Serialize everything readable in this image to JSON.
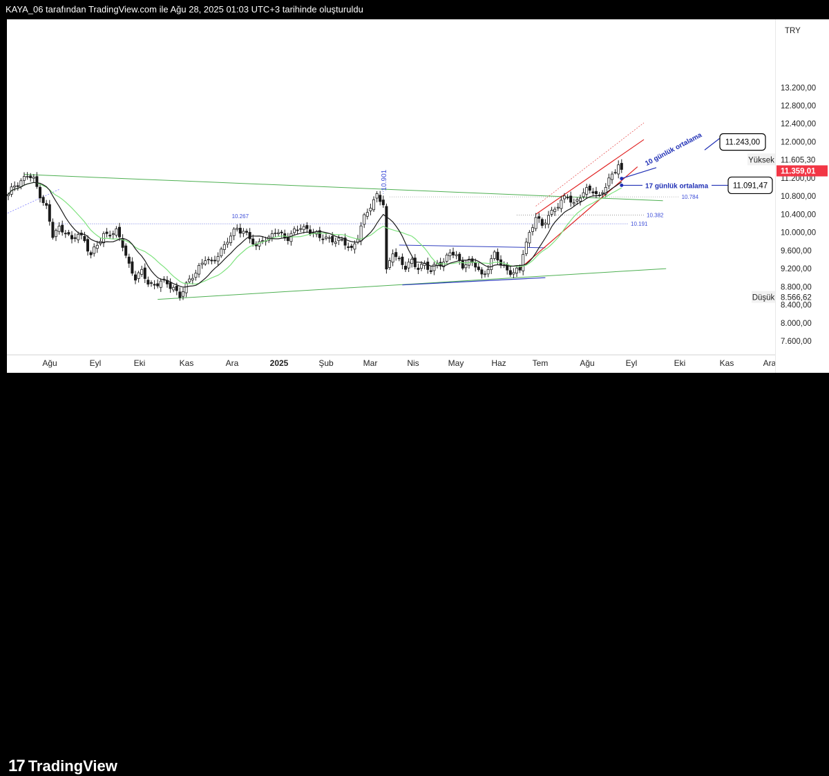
{
  "header": {
    "title": "KAYA_06 tarafından TradingView.com ile Ağu 28, 2025 01:03 UTC+3 tarihinde oluşturuldu"
  },
  "footer": {
    "logo_mark": "17",
    "logo_text": "TradingView"
  },
  "colors": {
    "candle": "#1a1a1a",
    "ma10": "#1a1a1a",
    "ma17": "#7ee27e",
    "trend_green": "#4caf50",
    "trend_blue": "#2e3dbf",
    "channel_red": "#e02020",
    "label_blue": "#1f2fb5",
    "price_red": "#f23645"
  },
  "chart_data": {
    "type": "candlestick",
    "currency": "TRY",
    "y_ticks": [
      "7.600,00",
      "8.000,00",
      "8.400,00",
      "8.800,00",
      "9.200,00",
      "9.600,00",
      "10.000,00",
      "10.400,00",
      "10.800,00",
      "11.200,00",
      "12.000,00",
      "12.400,00",
      "12.800,00",
      "13.200,00"
    ],
    "x_ticks": [
      "Ağu",
      "Eyl",
      "Eki",
      "Kas",
      "Ara",
      "2025",
      "Şub",
      "Mar",
      "Nis",
      "May",
      "Haz",
      "Tem",
      "Ağu",
      "Eyl",
      "Eki",
      "Kas",
      "Ara"
    ],
    "ylim": [
      7300,
      13500
    ],
    "high_label": "Yüksek",
    "high_value": "11.605,30",
    "low_label": "Düşük",
    "low_value": "8.566,62",
    "last_price": "11.359,01",
    "price_line_labels": [
      "10.784",
      "10.382",
      "10.191"
    ],
    "peak_labels": [
      "10.267",
      "10.901"
    ],
    "annotations": {
      "ma10_label": "10 günlük ortalama",
      "ma10_value": "11.243,00",
      "ma17_label": "17 günlük ortalama",
      "ma17_value": "11.091,47"
    },
    "price_path": [
      [
        0,
        10800
      ],
      [
        2,
        11050
      ],
      [
        4,
        11150
      ],
      [
        6,
        11250
      ],
      [
        8,
        11150
      ],
      [
        10,
        10850
      ],
      [
        12,
        10550
      ],
      [
        14,
        9900
      ],
      [
        16,
        10100
      ],
      [
        18,
        10050
      ],
      [
        20,
        9800
      ],
      [
        22,
        9950
      ],
      [
        24,
        9850
      ],
      [
        26,
        9500
      ],
      [
        28,
        9700
      ],
      [
        30,
        9950
      ],
      [
        32,
        10000
      ],
      [
        34,
        10000
      ],
      [
        36,
        9700
      ],
      [
        38,
        9300
      ],
      [
        40,
        9000
      ],
      [
        42,
        9100
      ],
      [
        44,
        8900
      ],
      [
        46,
        8850
      ],
      [
        48,
        8900
      ],
      [
        50,
        8850
      ],
      [
        52,
        8800
      ],
      [
        54,
        8600
      ],
      [
        56,
        8800
      ],
      [
        58,
        9050
      ],
      [
        60,
        9250
      ],
      [
        62,
        9400
      ],
      [
        64,
        9300
      ],
      [
        66,
        9550
      ],
      [
        68,
        9700
      ],
      [
        70,
        9900
      ],
      [
        72,
        10100
      ],
      [
        74,
        10050
      ],
      [
        76,
        9850
      ],
      [
        78,
        9650
      ],
      [
        80,
        9900
      ],
      [
        82,
        9850
      ],
      [
        84,
        10000
      ],
      [
        86,
        9950
      ],
      [
        88,
        9900
      ],
      [
        90,
        10000
      ],
      [
        92,
        10100
      ],
      [
        94,
        10100
      ],
      [
        96,
        10000
      ],
      [
        98,
        9850
      ],
      [
        100,
        9900
      ],
      [
        102,
        9850
      ],
      [
        104,
        9800
      ],
      [
        106,
        9750
      ],
      [
        108,
        9650
      ],
      [
        110,
        9900
      ],
      [
        112,
        10300
      ],
      [
        114,
        10600
      ],
      [
        116,
        10850
      ],
      [
        118,
        10600
      ],
      [
        119,
        9100
      ],
      [
        121,
        9600
      ],
      [
        123,
        9400
      ],
      [
        125,
        9200
      ],
      [
        127,
        9350
      ],
      [
        129,
        9250
      ],
      [
        131,
        9300
      ],
      [
        133,
        9100
      ],
      [
        135,
        9350
      ],
      [
        137,
        9350
      ],
      [
        139,
        9550
      ],
      [
        141,
        9450
      ],
      [
        143,
        9300
      ],
      [
        145,
        9350
      ],
      [
        147,
        9250
      ],
      [
        149,
        9050
      ],
      [
        151,
        9250
      ],
      [
        153,
        9500
      ],
      [
        155,
        9300
      ],
      [
        157,
        9200
      ],
      [
        159,
        9100
      ],
      [
        161,
        9150
      ],
      [
        162,
        9550
      ],
      [
        164,
        10000
      ],
      [
        166,
        10350
      ],
      [
        168,
        10100
      ],
      [
        170,
        10400
      ],
      [
        172,
        10550
      ],
      [
        174,
        10650
      ],
      [
        176,
        10800
      ],
      [
        178,
        10650
      ],
      [
        180,
        10800
      ],
      [
        182,
        10900
      ],
      [
        184,
        10950
      ],
      [
        186,
        10800
      ],
      [
        188,
        11000
      ],
      [
        190,
        11250
      ],
      [
        192,
        11550
      ],
      [
        193,
        11360
      ]
    ]
  }
}
